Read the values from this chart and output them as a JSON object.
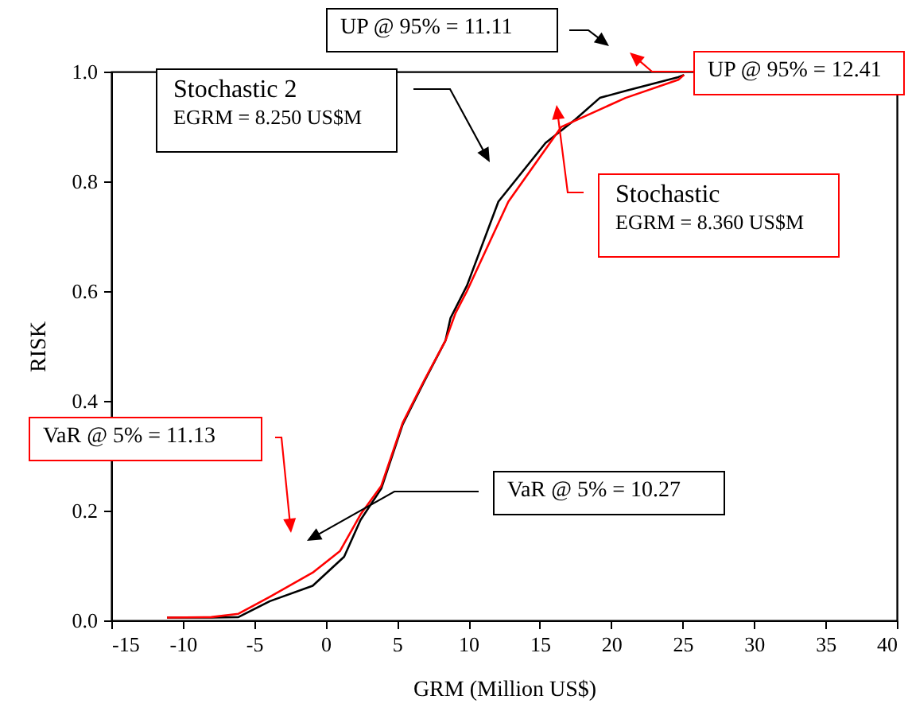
{
  "chart_data": {
    "type": "line",
    "xlabel": "GRM (Million US$)",
    "ylabel": "RISK",
    "xlim": [
      -15,
      40
    ],
    "xticks": [
      -15,
      -10,
      -5,
      0,
      5,
      10,
      15,
      20,
      25,
      30,
      35,
      40
    ],
    "ylim": [
      0,
      1
    ],
    "yticks": [
      {
        "value": 0,
        "label": "0.0"
      },
      0.2,
      0.4,
      0.6,
      0.8,
      {
        "value": 1,
        "label": "1.0"
      }
    ],
    "grid": false,
    "line_style": "solid",
    "series": [
      {
        "name": "Stochastic 2",
        "color": "#000000",
        "x": [
          -11.1,
          -8,
          -6.1,
          -3.9,
          -0.9,
          1.3,
          2.45,
          3.9,
          5.4,
          6.9,
          8.4,
          8.75,
          9.9,
          12.1,
          15.4,
          17.5,
          19.2,
          21,
          24.7,
          25.1
        ],
        "values": [
          0.005,
          0.005,
          0.006,
          0.035,
          0.063,
          0.116,
          0.183,
          0.24,
          0.357,
          0.435,
          0.51,
          0.551,
          0.61,
          0.763,
          0.87,
          0.913,
          0.952,
          0.965,
          0.99,
          0.994
        ]
      },
      {
        "name": "Stochastic",
        "color": "#ff0000",
        "x": [
          -11.1,
          -8,
          -6.1,
          -3.9,
          -0.9,
          1,
          2.45,
          3.9,
          5.4,
          6.9,
          8.4,
          9.1,
          9.9,
          12.8,
          16.5,
          21,
          24.7,
          25.1
        ],
        "values": [
          0.005,
          0.006,
          0.012,
          0.043,
          0.087,
          0.126,
          0.193,
          0.245,
          0.36,
          0.437,
          0.51,
          0.56,
          0.6,
          0.763,
          0.899,
          0.952,
          0.985,
          0.994
        ]
      }
    ],
    "annotations": [
      "UP @ 95% = 11.11",
      "UP @ 95% = 12.41",
      "EGRM = 8.250 US$M",
      "EGRM = 8.360 US$M",
      "VaR @ 5% = 11.13",
      "VaR @ 5% = 10.27"
    ]
  }
}
